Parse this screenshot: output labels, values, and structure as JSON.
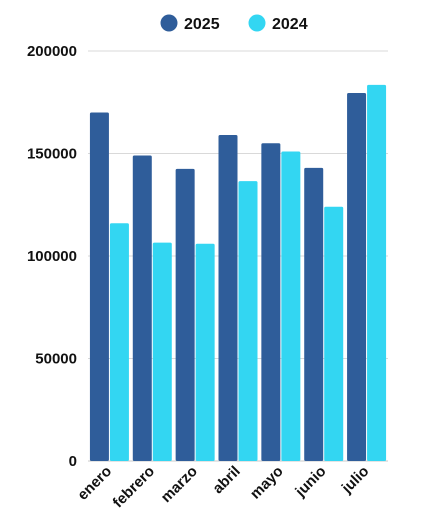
{
  "chart_data": {
    "type": "bar",
    "categories": [
      "enero",
      "febrero",
      "marzo",
      "abril",
      "mayo",
      "junio",
      "julio"
    ],
    "series": [
      {
        "name": "2025",
        "color": "#2f5d9a",
        "values": [
          170000,
          149000,
          142500,
          159000,
          155000,
          143000,
          179500
        ]
      },
      {
        "name": "2024",
        "color": "#33d6f2",
        "values": [
          116000,
          106500,
          106000,
          136500,
          151000,
          124000,
          183500
        ]
      }
    ],
    "ylim": [
      0,
      200000
    ],
    "yticks": [
      "0",
      "50000",
      "100000",
      "150000",
      "200000"
    ],
    "grid": true,
    "legend_position": "top-center"
  }
}
